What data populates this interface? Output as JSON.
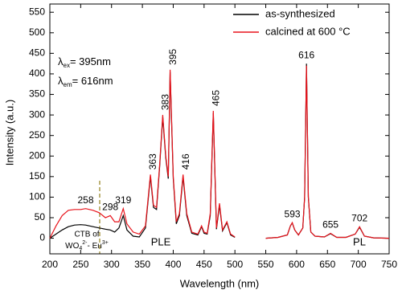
{
  "chart_data": {
    "type": "line",
    "x_label": "Wavelength (nm)",
    "y_label": "Intensity (a.u.)",
    "xlim": [
      200,
      750
    ],
    "ylim": [
      -38,
      570
    ],
    "xticks": [
      200,
      250,
      300,
      350,
      400,
      450,
      500,
      550,
      600,
      650,
      700,
      750
    ],
    "yticks": [
      0,
      50,
      100,
      150,
      200,
      250,
      300,
      350,
      400,
      450,
      500,
      550
    ],
    "legend": "upper right",
    "x": [
      200,
      210,
      220,
      230,
      240,
      250,
      258,
      270,
      280,
      290,
      298,
      305,
      312,
      319,
      325,
      335,
      345,
      355,
      363,
      368,
      373,
      378,
      383,
      388,
      392,
      395,
      400,
      405,
      410,
      416,
      422,
      430,
      440,
      446,
      450,
      455,
      460,
      465,
      470,
      475,
      480,
      487,
      493,
      500,
      525,
      550,
      570,
      585,
      590,
      593,
      597,
      603,
      610,
      613,
      616,
      619,
      623,
      630,
      645,
      655,
      665,
      680,
      695,
      702,
      710,
      725,
      750
    ],
    "series": [
      {
        "name": "as-synthesized",
        "color": "#000000",
        "values": [
          0,
          10,
          20,
          28,
          32,
          33,
          32,
          28,
          25,
          22,
          20,
          15,
          25,
          55,
          20,
          5,
          3,
          25,
          150,
          75,
          70,
          175,
          295,
          195,
          145,
          405,
          145,
          35,
          55,
          150,
          55,
          12,
          8,
          28,
          12,
          10,
          55,
          305,
          22,
          80,
          18,
          38,
          8,
          2,
          null,
          0,
          2,
          8,
          30,
          37,
          20,
          8,
          25,
          100,
          425,
          100,
          15,
          5,
          3,
          11,
          2,
          2,
          10,
          27,
          5,
          1,
          0
        ]
      },
      {
        "name": "calcined at 600 °C",
        "color": "#e8141c",
        "values": [
          0,
          30,
          55,
          68,
          70,
          70,
          72,
          68,
          62,
          50,
          55,
          40,
          40,
          72,
          35,
          15,
          10,
          30,
          155,
          80,
          75,
          180,
          300,
          200,
          150,
          410,
          150,
          40,
          60,
          155,
          60,
          15,
          10,
          30,
          15,
          12,
          60,
          310,
          25,
          85,
          20,
          40,
          10,
          3,
          null,
          0,
          2,
          8,
          30,
          38,
          20,
          8,
          25,
          100,
          420,
          100,
          15,
          5,
          3,
          12,
          2,
          2,
          10,
          28,
          5,
          1,
          0
        ]
      }
    ],
    "peak_labels": [
      258,
      298,
      319,
      363,
      383,
      395,
      416,
      465,
      593,
      616,
      655,
      702
    ],
    "annotations": {
      "excitation": {
        "symbol": "λ",
        "sub": "ex",
        "text": "= 395nm"
      },
      "emission": {
        "symbol": "λ",
        "sub": "em",
        "text": "= 616nm"
      },
      "ple": "PLE",
      "pl": "PL",
      "ctb_line1": "CTB of",
      "ctb_parts": [
        "WO",
        "4",
        "2-",
        "- Eu",
        "3+"
      ]
    }
  }
}
